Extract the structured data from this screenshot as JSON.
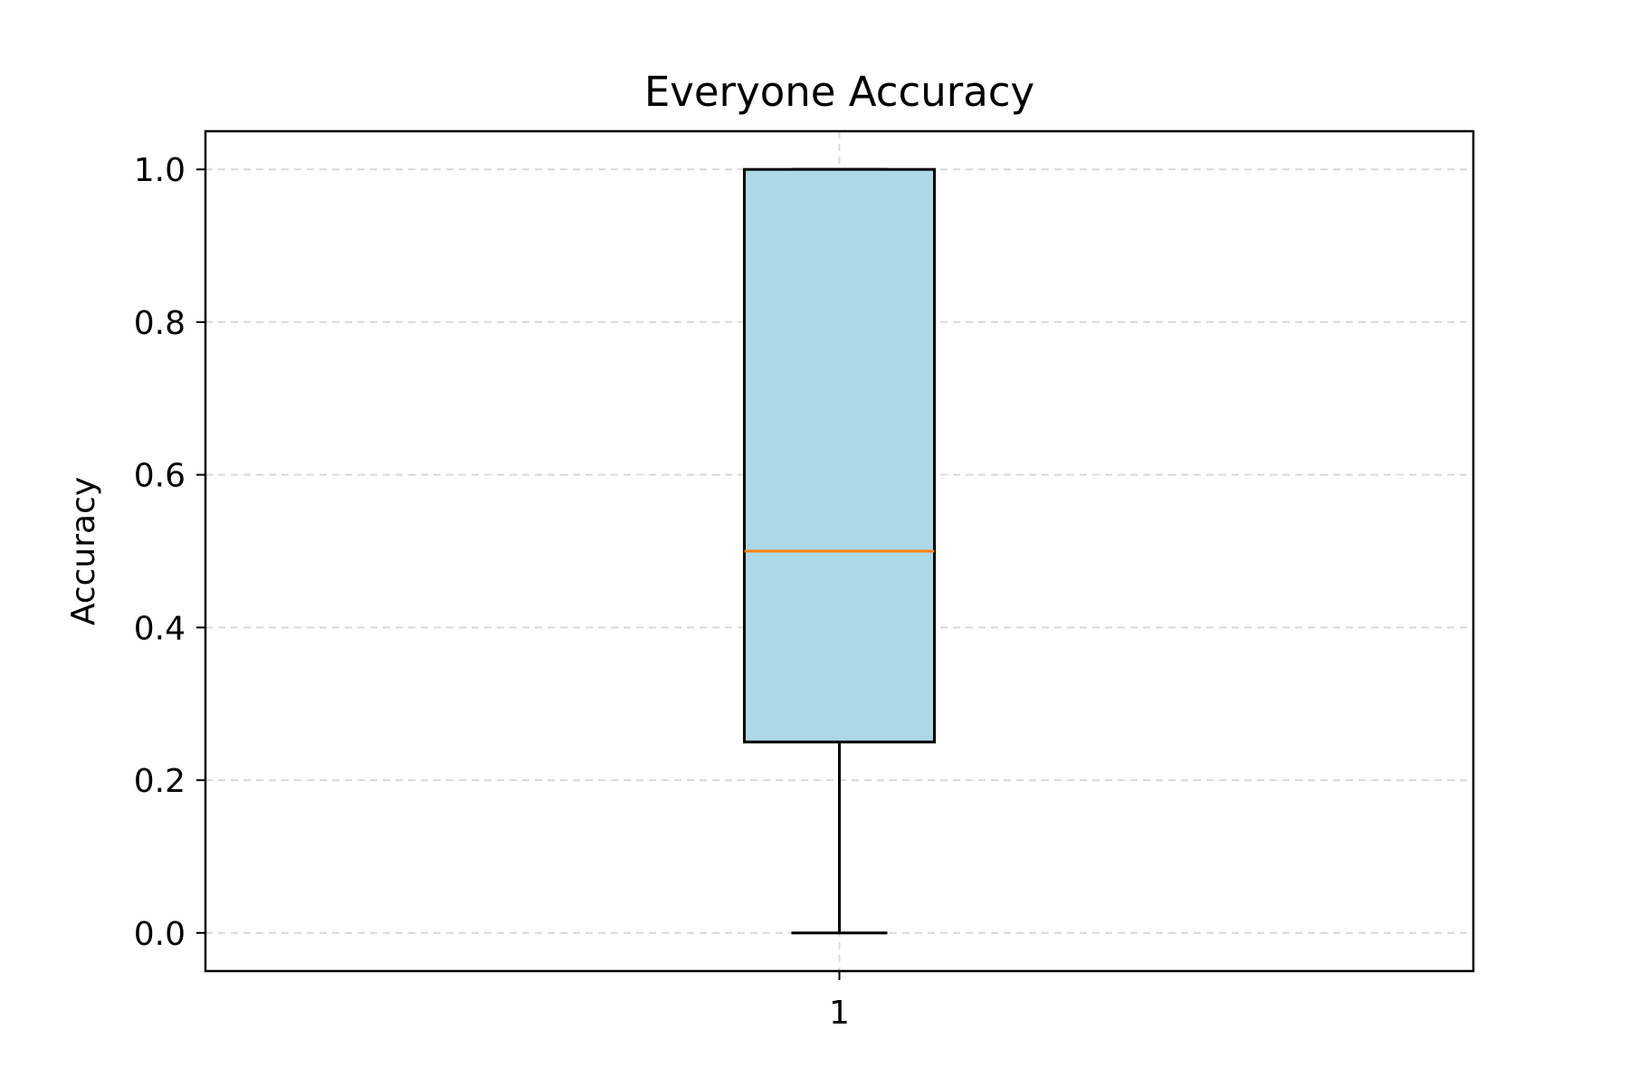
{
  "chart_data": {
    "type": "box",
    "title": "Everyone Accuracy",
    "xlabel": "",
    "ylabel": "Accuracy",
    "ylim": [
      -0.05,
      1.05
    ],
    "yticks": [
      "0.0",
      "0.2",
      "0.4",
      "0.6",
      "0.8",
      "1.0"
    ],
    "ytick_values": [
      0.0,
      0.2,
      0.4,
      0.6,
      0.8,
      1.0
    ],
    "categories": [
      "1"
    ],
    "grid": true,
    "series": [
      {
        "category": "1",
        "whisker_low": 0.0,
        "q1": 0.25,
        "median": 0.5,
        "q3": 1.0,
        "whisker_high": 1.0
      }
    ],
    "colors": {
      "box_fill": "#add8e6",
      "median": "#ff7f0e",
      "grid": "#d9d9d9",
      "frame": "#000000"
    }
  }
}
